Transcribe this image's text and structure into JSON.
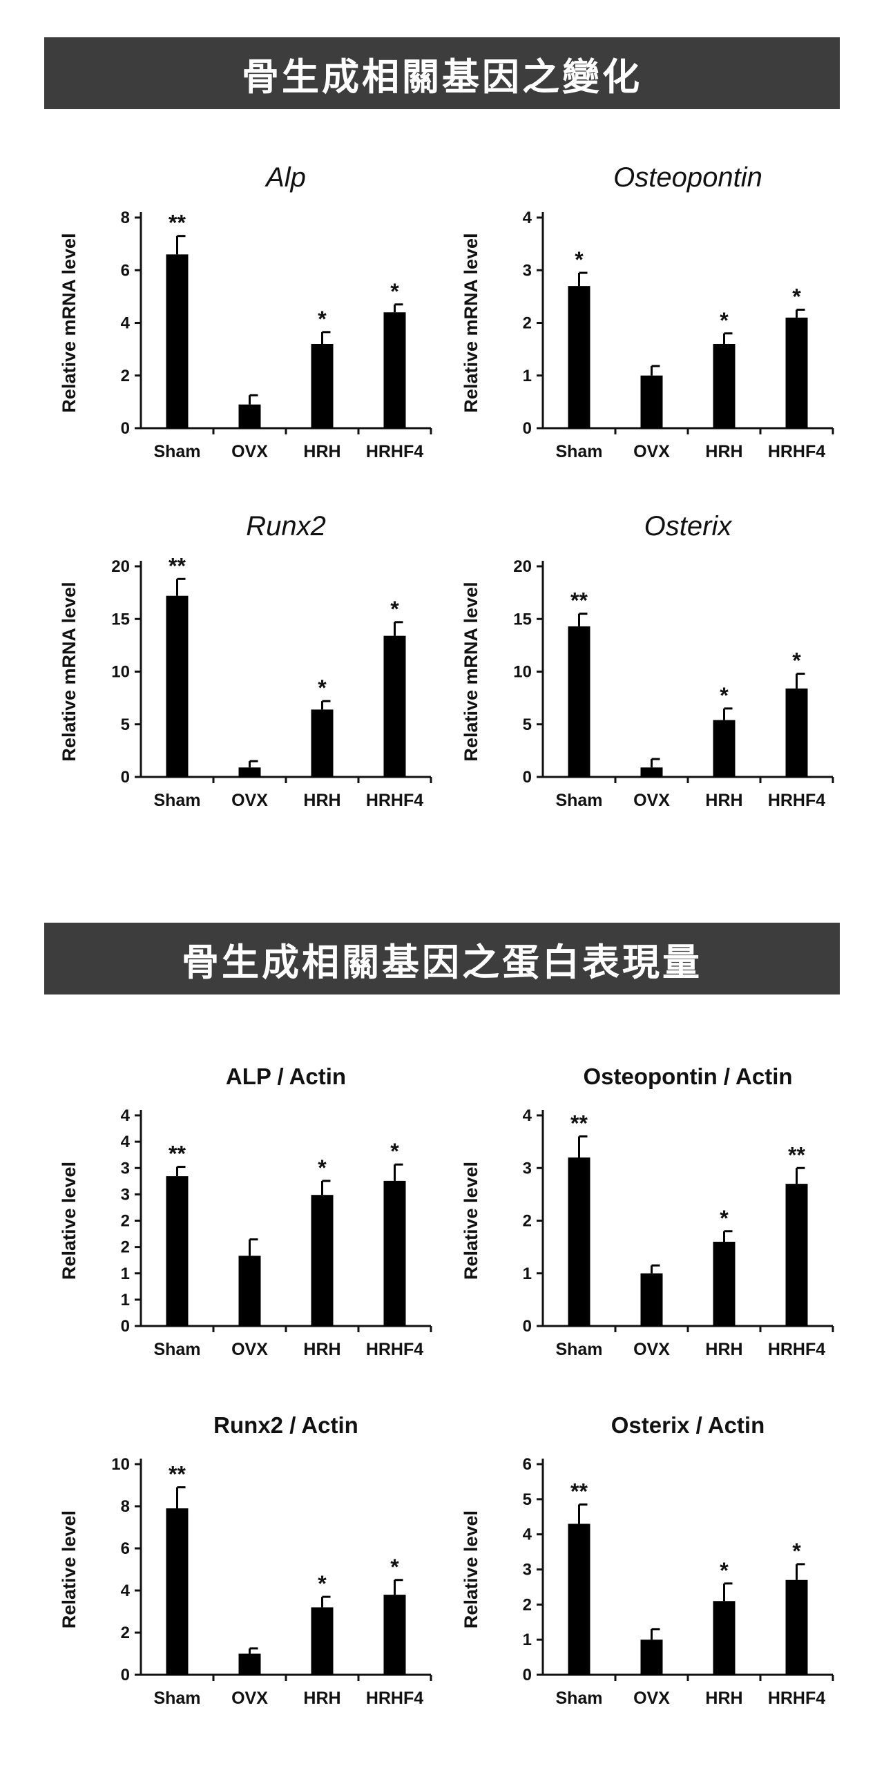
{
  "sections": [
    {
      "banner": "骨生成相關基因之變化"
    },
    {
      "banner": "骨生成相關基因之蛋白表現量"
    }
  ],
  "chart_data": [
    {
      "type": "bar",
      "title": "Alp",
      "title_style": "italic",
      "ylabel": "Relative mRNA level",
      "categories": [
        "Sham",
        "OVX",
        "HRH",
        "HRHF4"
      ],
      "values": [
        6.6,
        0.9,
        3.2,
        4.4
      ],
      "errors": [
        0.7,
        0.35,
        0.45,
        0.3
      ],
      "significance": [
        "**",
        "",
        "*",
        "*"
      ],
      "ylim": [
        0,
        8
      ],
      "yticks": [
        "0",
        "2",
        "4",
        "6",
        "8"
      ]
    },
    {
      "type": "bar",
      "title": "Osteopontin",
      "title_style": "italic",
      "ylabel": "Relative mRNA level",
      "categories": [
        "Sham",
        "OVX",
        "HRH",
        "HRHF4"
      ],
      "values": [
        2.7,
        1.0,
        1.6,
        2.1
      ],
      "errors": [
        0.25,
        0.18,
        0.2,
        0.15
      ],
      "significance": [
        "*",
        "",
        "*",
        "*"
      ],
      "ylim": [
        0,
        4
      ],
      "yticks": [
        "0",
        "1",
        "2",
        "3",
        "4"
      ]
    },
    {
      "type": "bar",
      "title": "Runx2",
      "title_style": "italic",
      "ylabel": "Relative mRNA level",
      "categories": [
        "Sham",
        "OVX",
        "HRH",
        "HRHF4"
      ],
      "values": [
        17.2,
        0.9,
        6.4,
        13.4
      ],
      "errors": [
        1.6,
        0.6,
        0.8,
        1.3
      ],
      "significance": [
        "**",
        "",
        "*",
        "*"
      ],
      "ylim": [
        0,
        20
      ],
      "yticks": [
        "0",
        "5",
        "10",
        "15",
        "20"
      ]
    },
    {
      "type": "bar",
      "title": "Osterix",
      "title_style": "italic",
      "ylabel": "Relative mRNA level",
      "categories": [
        "Sham",
        "OVX",
        "HRH",
        "HRHF4"
      ],
      "values": [
        14.3,
        0.9,
        5.4,
        8.4
      ],
      "errors": [
        1.2,
        0.8,
        1.1,
        1.4
      ],
      "significance": [
        "**",
        "",
        "*",
        "*"
      ],
      "ylim": [
        0,
        20
      ],
      "yticks": [
        "0",
        "5",
        "10",
        "15",
        "20"
      ]
    },
    {
      "type": "bar",
      "title": "ALP / Actin",
      "title_style": "bold",
      "ylabel": "Relative level",
      "categories": [
        "Sham",
        "OVX",
        "HRH",
        "HRHF4"
      ],
      "values": [
        3.2,
        1.5,
        2.8,
        3.1
      ],
      "errors": [
        0.2,
        0.35,
        0.3,
        0.35
      ],
      "significance": [
        "**",
        "",
        "*",
        "*"
      ],
      "ylim": [
        0,
        4.5
      ],
      "yticks": [
        "0",
        "1",
        "1",
        "2",
        "2",
        "3",
        "3",
        "4",
        "4"
      ]
    },
    {
      "type": "bar",
      "title": "Osteopontin / Actin",
      "title_style": "bold",
      "ylabel": "Relative level",
      "categories": [
        "Sham",
        "OVX",
        "HRH",
        "HRHF4"
      ],
      "values": [
        3.2,
        1.0,
        1.6,
        2.7
      ],
      "errors": [
        0.4,
        0.15,
        0.2,
        0.3
      ],
      "significance": [
        "**",
        "",
        "*",
        "**"
      ],
      "ylim": [
        0,
        4
      ],
      "yticks": [
        "0",
        "1",
        "2",
        "3",
        "4"
      ]
    },
    {
      "type": "bar",
      "title": "Runx2 / Actin",
      "title_style": "bold",
      "ylabel": "Relative level",
      "categories": [
        "Sham",
        "OVX",
        "HRH",
        "HRHF4"
      ],
      "values": [
        7.9,
        1.0,
        3.2,
        3.8
      ],
      "errors": [
        1.0,
        0.25,
        0.5,
        0.7
      ],
      "significance": [
        "**",
        "",
        "*",
        "*"
      ],
      "ylim": [
        0,
        10
      ],
      "yticks": [
        "0",
        "2",
        "4",
        "6",
        "8",
        "10"
      ]
    },
    {
      "type": "bar",
      "title": "Osterix / Actin",
      "title_style": "bold",
      "ylabel": "Relative level",
      "categories": [
        "Sham",
        "OVX",
        "HRH",
        "HRHF4"
      ],
      "values": [
        4.3,
        1.0,
        2.1,
        2.7
      ],
      "errors": [
        0.55,
        0.3,
        0.5,
        0.45
      ],
      "significance": [
        "**",
        "",
        "*",
        "*"
      ],
      "ylim": [
        0,
        6
      ],
      "yticks": [
        "0",
        "1",
        "2",
        "3",
        "4",
        "5",
        "6"
      ]
    }
  ]
}
